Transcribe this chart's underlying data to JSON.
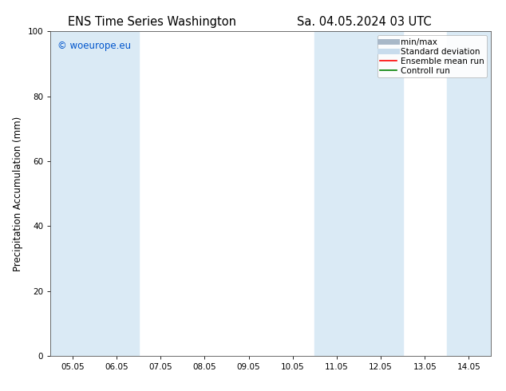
{
  "title_left": "ENS Time Series Washington",
  "title_right": "Sa. 04.05.2024 03 UTC",
  "ylabel": "Precipitation Accumulation (mm)",
  "watermark": "© woeurope.eu",
  "ylim": [
    0,
    100
  ],
  "yticks": [
    0,
    20,
    40,
    60,
    80,
    100
  ],
  "x_tick_labels": [
    "05.05",
    "06.05",
    "07.05",
    "08.05",
    "09.05",
    "10.05",
    "11.05",
    "12.05",
    "13.05",
    "14.05"
  ],
  "x_tick_positions": [
    1,
    2,
    3,
    4,
    5,
    6,
    7,
    8,
    9,
    10
  ],
  "xlim": [
    0.5,
    10.5
  ],
  "shaded_bands": [
    {
      "x_start": 0.5,
      "x_end": 1.5
    },
    {
      "x_start": 1.5,
      "x_end": 2.5
    },
    {
      "x_start": 6.5,
      "x_end": 7.5
    },
    {
      "x_start": 7.5,
      "x_end": 8.5
    },
    {
      "x_start": 9.5,
      "x_end": 10.5
    }
  ],
  "shaded_color": "#daeaf5",
  "legend_items": [
    {
      "label": "min/max",
      "color": "#a8b8c8",
      "linestyle": "-",
      "linewidth": 5
    },
    {
      "label": "Standard deviation",
      "color": "#c8dced",
      "linestyle": "-",
      "linewidth": 5
    },
    {
      "label": "Ensemble mean run",
      "color": "#ff0000",
      "linestyle": "-",
      "linewidth": 1.2
    },
    {
      "label": "Controll run",
      "color": "#008000",
      "linestyle": "-",
      "linewidth": 1.2
    }
  ],
  "bg_color": "#ffffff",
  "plot_bg_color": "#ffffff",
  "watermark_color": "#0055cc",
  "title_fontsize": 10.5,
  "axis_label_fontsize": 8.5,
  "tick_fontsize": 7.5,
  "legend_fontsize": 7.5
}
